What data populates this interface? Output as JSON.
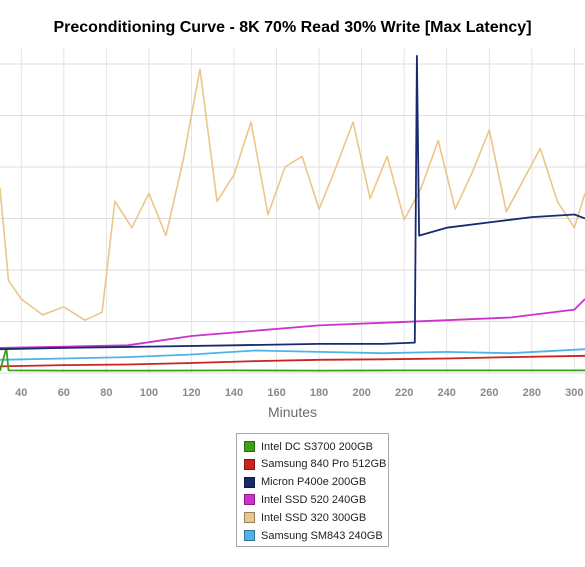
{
  "chart_data": {
    "type": "line",
    "title": "Preconditioning Curve - 8K 70% Read 30% Write [Max Latency]",
    "xlabel": "Minutes",
    "ylabel": "",
    "xlim": [
      30,
      305
    ],
    "x_ticks": [
      "40",
      "60",
      "80",
      "100",
      "120",
      "140",
      "160",
      "180",
      "200",
      "220",
      "240",
      "260",
      "280",
      "300"
    ],
    "y_gridlines": 7,
    "grid": true,
    "legend_position": "bottom-center",
    "series": [
      {
        "name": "Intel DC S3700 200GB",
        "color": "#3aa017",
        "points": [
          [
            30,
            0.08
          ],
          [
            33,
            0.95
          ],
          [
            34,
            0.1
          ],
          [
            60,
            0.09
          ],
          [
            100,
            0.09
          ],
          [
            140,
            0.1
          ],
          [
            180,
            0.09
          ],
          [
            220,
            0.1
          ],
          [
            260,
            0.1
          ],
          [
            305,
            0.1
          ]
        ]
      },
      {
        "name": "Samsung 840 Pro 512GB",
        "color": "#cc2222",
        "points": [
          [
            30,
            0.25
          ],
          [
            60,
            0.3
          ],
          [
            90,
            0.32
          ],
          [
            120,
            0.38
          ],
          [
            150,
            0.45
          ],
          [
            180,
            0.5
          ],
          [
            210,
            0.52
          ],
          [
            240,
            0.55
          ],
          [
            270,
            0.6
          ],
          [
            305,
            0.65
          ]
        ]
      },
      {
        "name": "Micron P400e 200GB",
        "color": "#18296e",
        "points": [
          [
            30,
            0.9
          ],
          [
            60,
            0.95
          ],
          [
            100,
            1.0
          ],
          [
            140,
            1.05
          ],
          [
            180,
            1.1
          ],
          [
            210,
            1.1
          ],
          [
            225,
            1.15
          ],
          [
            226,
            12.0
          ],
          [
            227,
            5.2
          ],
          [
            240,
            5.5
          ],
          [
            260,
            5.7
          ],
          [
            280,
            5.9
          ],
          [
            300,
            6.0
          ],
          [
            305,
            5.85
          ]
        ]
      },
      {
        "name": "Intel SSD 520 240GB",
        "color": "#cc33cc",
        "points": [
          [
            30,
            0.95
          ],
          [
            60,
            1.0
          ],
          [
            90,
            1.05
          ],
          [
            120,
            1.4
          ],
          [
            150,
            1.6
          ],
          [
            180,
            1.8
          ],
          [
            210,
            1.9
          ],
          [
            240,
            2.0
          ],
          [
            270,
            2.1
          ],
          [
            300,
            2.4
          ],
          [
            305,
            2.8
          ]
        ]
      },
      {
        "name": "Intel SSD 320 300GB",
        "color": "#ecc689",
        "points": [
          [
            30,
            7.0
          ],
          [
            34,
            3.5
          ],
          [
            40,
            2.8
          ],
          [
            50,
            2.2
          ],
          [
            60,
            2.5
          ],
          [
            70,
            2.0
          ],
          [
            78,
            2.3
          ],
          [
            84,
            6.5
          ],
          [
            92,
            5.5
          ],
          [
            100,
            6.8
          ],
          [
            108,
            5.2
          ],
          [
            116,
            8.0
          ],
          [
            124,
            11.5
          ],
          [
            132,
            6.5
          ],
          [
            140,
            7.5
          ],
          [
            148,
            9.5
          ],
          [
            156,
            6.0
          ],
          [
            164,
            7.8
          ],
          [
            172,
            8.2
          ],
          [
            180,
            6.2
          ],
          [
            188,
            7.8
          ],
          [
            196,
            9.5
          ],
          [
            204,
            6.6
          ],
          [
            212,
            8.2
          ],
          [
            220,
            5.8
          ],
          [
            228,
            7.0
          ],
          [
            236,
            8.8
          ],
          [
            244,
            6.2
          ],
          [
            252,
            7.6
          ],
          [
            260,
            9.2
          ],
          [
            268,
            6.1
          ],
          [
            276,
            7.3
          ],
          [
            284,
            8.5
          ],
          [
            292,
            6.5
          ],
          [
            300,
            5.5
          ],
          [
            305,
            6.8
          ]
        ]
      },
      {
        "name": "Samsung SM843 240GB",
        "color": "#4fb3ea",
        "points": [
          [
            30,
            0.5
          ],
          [
            60,
            0.55
          ],
          [
            90,
            0.6
          ],
          [
            120,
            0.7
          ],
          [
            150,
            0.85
          ],
          [
            180,
            0.8
          ],
          [
            210,
            0.75
          ],
          [
            240,
            0.8
          ],
          [
            270,
            0.75
          ],
          [
            305,
            0.9
          ]
        ]
      }
    ]
  }
}
